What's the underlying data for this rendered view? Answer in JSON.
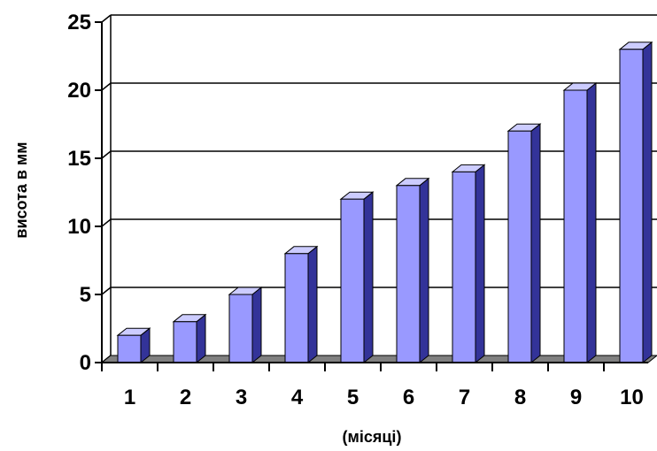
{
  "chart_data": {
    "type": "bar",
    "style": "3d-column",
    "title": "",
    "xlabel": "(місяці)",
    "ylabel": "висота в мм",
    "categories": [
      "1",
      "2",
      "3",
      "4",
      "5",
      "6",
      "7",
      "8",
      "9",
      "10"
    ],
    "values": [
      2,
      3,
      5,
      8,
      12,
      13,
      14,
      17,
      20,
      23
    ],
    "ylim": [
      0,
      25
    ],
    "yticks": [
      "0",
      "5",
      "10",
      "15",
      "20",
      "25"
    ],
    "grid": true,
    "legend": "none",
    "colors": {
      "bar_front": "#9999ff",
      "bar_side": "#333399",
      "bar_top": "#ccccff",
      "floor": "#808080",
      "gridline": "#000000"
    }
  }
}
